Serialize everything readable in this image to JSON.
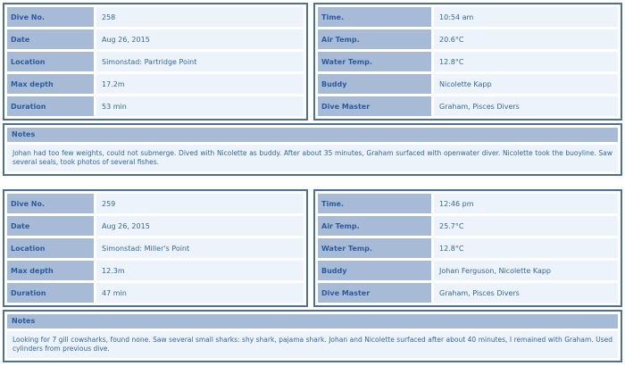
{
  "colors": {
    "label_bg": "#a7bad6",
    "value_bg": "#ecf3fa",
    "border": "#4e7096",
    "label_text": "#2b5c9e",
    "value_text": "#35679f",
    "page_bg": "#ffffff"
  },
  "entries": [
    {
      "left_rows": [
        {
          "label": "Dive No.",
          "value": "258"
        },
        {
          "label": "Date",
          "value": "Aug 26, 2015"
        },
        {
          "label": "Location",
          "value": "Simonstad: Partridge Point"
        },
        {
          "label": "Max depth",
          "value": "17.2m"
        },
        {
          "label": "Duration",
          "value": "53 min"
        }
      ],
      "right_rows": [
        {
          "label": "Time.",
          "value": "10:54 am"
        },
        {
          "label": "Air Temp.",
          "value": "20.6°C"
        },
        {
          "label": "Water Temp.",
          "value": "12.8°C"
        },
        {
          "label": "Buddy",
          "value": "Nicolette Kapp"
        },
        {
          "label": "Dive Master",
          "value": "Graham, Pisces Divers"
        }
      ],
      "notes_label": "Notes",
      "notes": "Johan had too few weights, could not submerge. Dived with Nicolette as buddy. After about 35 minutes, Graham surfaced with openwater diver. Nicolette took the buoyline. Saw several seals, took photos of several fishes."
    },
    {
      "left_rows": [
        {
          "label": "Dive No.",
          "value": "259"
        },
        {
          "label": "Date",
          "value": "Aug 26, 2015"
        },
        {
          "label": "Location",
          "value": "Simonstad: Miller's Point"
        },
        {
          "label": "Max depth",
          "value": "12.3m"
        },
        {
          "label": "Duration",
          "value": "47 min"
        }
      ],
      "right_rows": [
        {
          "label": "Time.",
          "value": "12:46 pm"
        },
        {
          "label": "Air Temp.",
          "value": "25.7°C"
        },
        {
          "label": "Water Temp.",
          "value": "12.8°C"
        },
        {
          "label": "Buddy",
          "value": "Johan Ferguson, Nicolette Kapp"
        },
        {
          "label": "Dive Master",
          "value": "Graham, Pisces Divers"
        }
      ],
      "notes_label": "Notes",
      "notes": "Looking for 7 gill cowsharks, found none. Saw several small sharks: shy shark, pajama shark. Johan and Nicolette surfaced after about 40 minutes, I remained with Graham. Used cylinders from previous dive."
    }
  ]
}
